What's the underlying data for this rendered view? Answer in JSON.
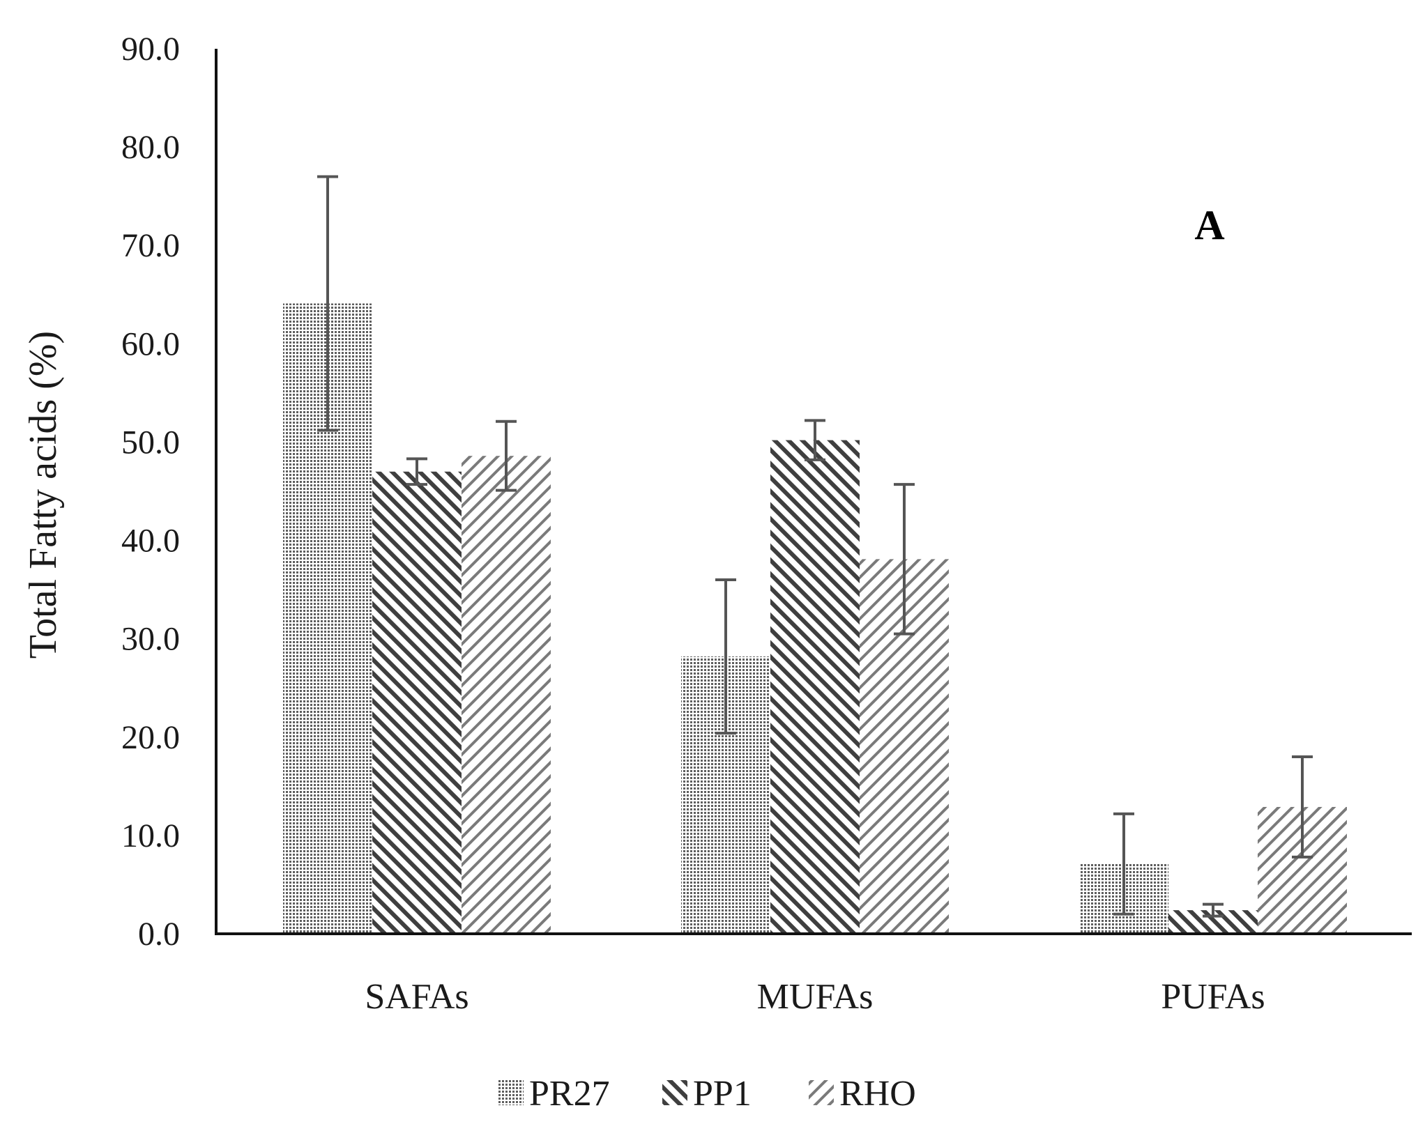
{
  "chart_data": {
    "type": "bar",
    "title": "",
    "xlabel": "",
    "ylabel": "Total Fatty acids (%)",
    "ylim": [
      0,
      90
    ],
    "yticks": [
      "0.0",
      "10.0",
      "20.0",
      "30.0",
      "40.0",
      "50.0",
      "60.0",
      "70.0",
      "80.0",
      "90.0"
    ],
    "grid": false,
    "legend_position": "bottom",
    "annotation": "A",
    "categories": [
      "SAFAs",
      "MUFAs",
      "PUFAs"
    ],
    "series": [
      {
        "name": "PR27",
        "pattern": "dots",
        "values": [
          64.1,
          28.2,
          7.1
        ],
        "errors": [
          12.9,
          7.8,
          5.1
        ]
      },
      {
        "name": "PP1",
        "pattern": "back-diagonal",
        "values": [
          47.0,
          50.2,
          2.4
        ],
        "errors": [
          1.3,
          2.0,
          0.6
        ]
      },
      {
        "name": "RHO",
        "pattern": "forward-diagonal",
        "values": [
          48.6,
          38.1,
          12.9
        ],
        "errors": [
          3.5,
          7.6,
          5.1
        ]
      }
    ],
    "colors": {
      "pattern_ink": "#5e5e5e",
      "axis": "#111111",
      "error_bar": "#555555"
    }
  }
}
